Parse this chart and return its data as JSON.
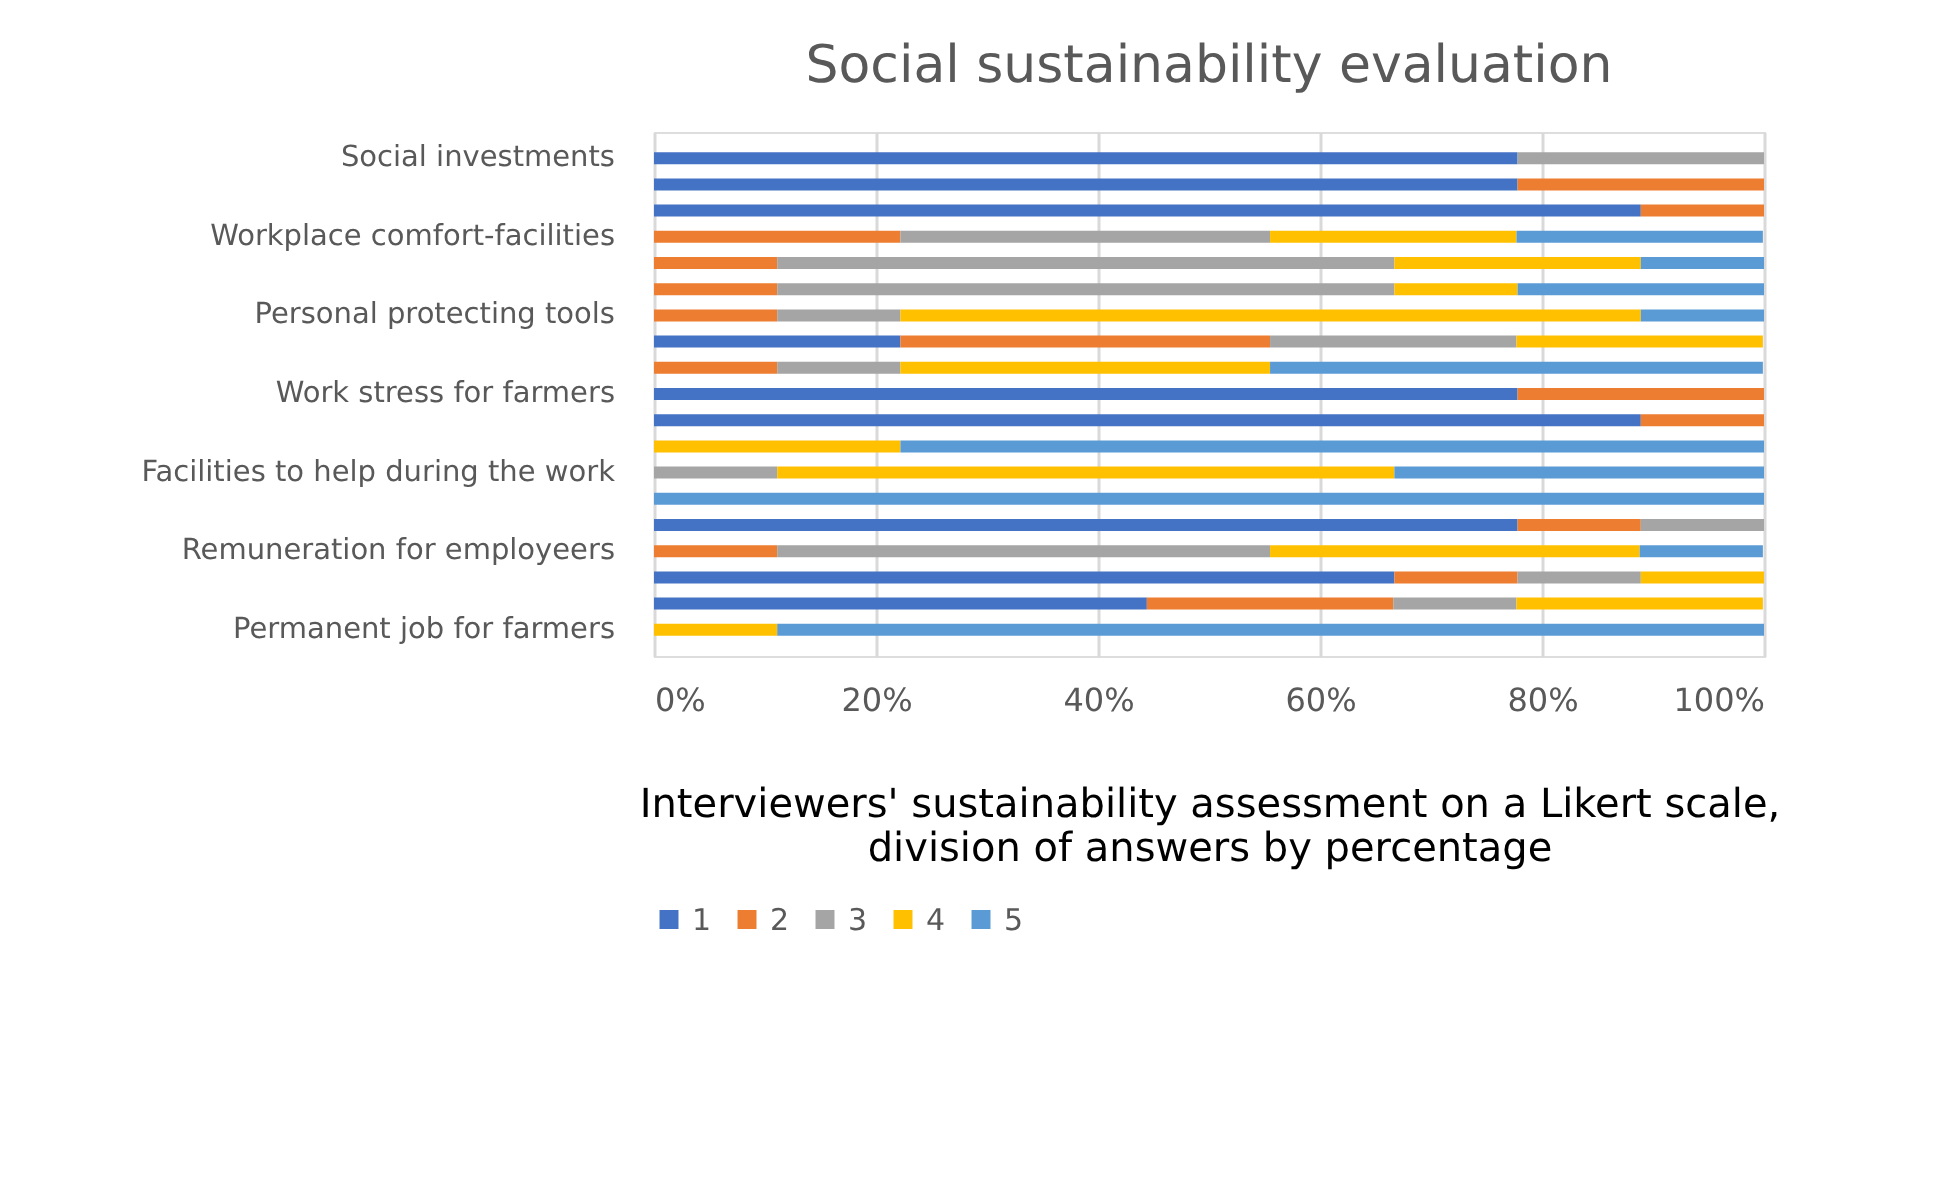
{
  "chart_data": {
    "type": "bar",
    "orientation": "horizontal",
    "stacked": true,
    "title": "Social sustainability evaluation",
    "xlabel": "Interviewers' sustainability assessment on a Likert scale,\ndivision of answers by percentage",
    "categories": [
      "Social investments",
      null,
      null,
      "Workplace comfort-facilities",
      null,
      null,
      "Personal protecting tools",
      null,
      null,
      "Work stress for farmers",
      null,
      null,
      "Facilities to help during the work",
      null,
      null,
      "Remuneration for employeers",
      null,
      null,
      "Permanent job for farmers"
    ],
    "series": [
      {
        "name": "1",
        "color": "#4472c4",
        "values": [
          77.8,
          77.8,
          88.9,
          null,
          null,
          null,
          null,
          22.2,
          null,
          77.8,
          88.9,
          null,
          null,
          null,
          77.8,
          null,
          66.7,
          44.4,
          null
        ]
      },
      {
        "name": "2",
        "color": "#ed7d31",
        "values": [
          null,
          22.2,
          11.1,
          22.2,
          11.1,
          11.1,
          11.1,
          33.3,
          11.1,
          22.2,
          11.1,
          null,
          null,
          null,
          11.1,
          11.1,
          11.1,
          22.2,
          null
        ]
      },
      {
        "name": "3",
        "color": "#a5a5a5",
        "values": [
          22.2,
          null,
          null,
          33.3,
          55.6,
          55.6,
          11.1,
          22.2,
          11.1,
          null,
          null,
          null,
          11.1,
          null,
          11.1,
          44.4,
          11.1,
          11.1,
          null
        ]
      },
      {
        "name": "4",
        "color": "#ffc000",
        "values": [
          null,
          null,
          null,
          22.2,
          22.2,
          11.1,
          66.7,
          22.2,
          33.3,
          null,
          null,
          22.2,
          55.6,
          null,
          null,
          33.3,
          11.1,
          22.2,
          11.1
        ]
      },
      {
        "name": "5",
        "color": "#5b9bd5",
        "values": [
          null,
          null,
          null,
          22.2,
          11.1,
          22.2,
          11.1,
          null,
          44.4,
          null,
          null,
          77.8,
          33.3,
          100,
          null,
          11.1,
          null,
          null,
          88.9
        ]
      }
    ],
    "xlim": [
      0,
      100
    ],
    "xticks": [
      {
        "value": 0,
        "label": "0%"
      },
      {
        "value": 20,
        "label": "20%"
      },
      {
        "value": 40,
        "label": "40%"
      },
      {
        "value": 60,
        "label": "60%"
      },
      {
        "value": 80,
        "label": "80%"
      },
      {
        "value": 100,
        "label": "100%"
      }
    ],
    "grid": "x",
    "legend": "bottom"
  }
}
